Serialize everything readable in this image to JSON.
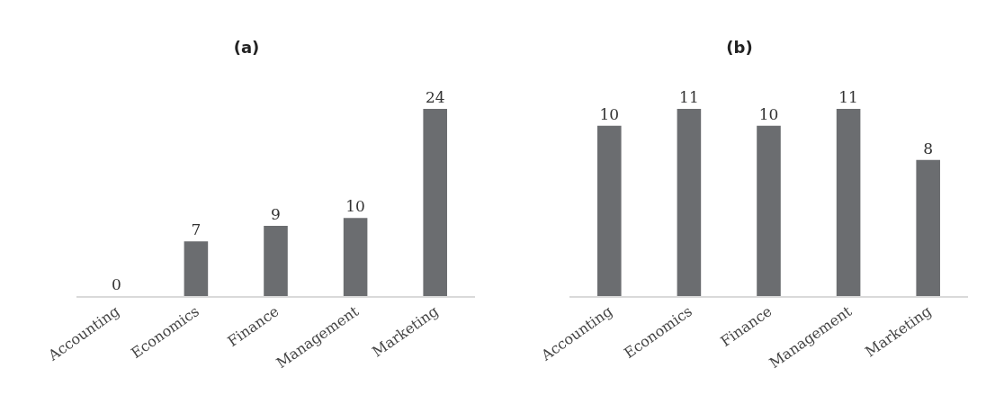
{
  "chart_data": [
    {
      "type": "bar",
      "title": "(a)",
      "categories": [
        "Accounting",
        "Economics",
        "Finance",
        "Management",
        "Marketing"
      ],
      "values": [
        0,
        7,
        9,
        10,
        24
      ],
      "color": "#6b6d70",
      "data_labels": true,
      "grid": false
    },
    {
      "type": "bar",
      "title": "(b)",
      "categories": [
        "Accounting",
        "Economics",
        "Finance",
        "Management",
        "Marketing"
      ],
      "values": [
        10,
        11,
        10,
        11,
        8
      ],
      "color": "#6b6d70",
      "data_labels": true,
      "grid": false
    }
  ]
}
